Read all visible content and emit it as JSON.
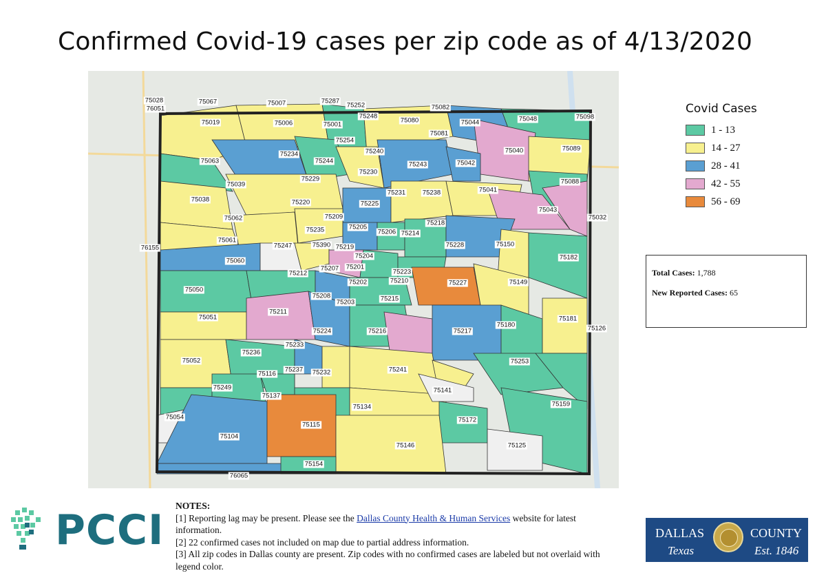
{
  "title": "Confirmed Covid-19 cases per zip code as of 4/13/2020",
  "legend": {
    "title": "Covid Cases",
    "items": [
      {
        "label": "1 - 13",
        "color": "#5cc9a3"
      },
      {
        "label": "14 - 27",
        "color": "#f7f08f"
      },
      {
        "label": "28 - 41",
        "color": "#5a9fd2"
      },
      {
        "label": "42 - 55",
        "color": "#e3a9cf"
      },
      {
        "label": "56 - 69",
        "color": "#e88a3c"
      }
    ]
  },
  "totals": {
    "total_label": "Total Cases:",
    "total_value": "1,788",
    "new_label": "New Reported Cases:",
    "new_value": "65"
  },
  "notes": {
    "heading": "NOTES:",
    "n1_pre": "[1] Reporting lag may be present. Please see the ",
    "n1_link": "Dallas County Health & Human Services",
    "n1_post": " website for latest information.",
    "n2": "[2] 22 confirmed cases not included on map due to partial address information.",
    "n3": "[3] All zip codes in Dallas county are present. Zip codes with no confirmed cases are labeled but not overlaid with legend color."
  },
  "logos": {
    "pcci": "PCCI",
    "dallas": "DALLAS",
    "county": "COUNTY",
    "texas": "Texas",
    "est": "Est. 1846"
  },
  "zips": [
    "75028",
    "76051",
    "75067",
    "75007",
    "75287",
    "75252",
    "75082",
    "75019",
    "75006",
    "75001",
    "75248",
    "75080",
    "75044",
    "75048",
    "75098",
    "75081",
    "75254",
    "75240",
    "75243",
    "75040",
    "75089",
    "75063",
    "75234",
    "75244",
    "75230",
    "75042",
    "75039",
    "75229",
    "75088",
    "75041",
    "75038",
    "75220",
    "75225",
    "75231",
    "75238",
    "75043",
    "75032",
    "75062",
    "75209",
    "75235",
    "75205",
    "75206",
    "75214",
    "75218",
    "75061",
    "75247",
    "75390",
    "75219",
    "75228",
    "75150",
    "76155",
    "75204",
    "75201",
    "75182",
    "75060",
    "75212",
    "75207",
    "75223",
    "75227",
    "75149",
    "75050",
    "75202",
    "75210",
    "75208",
    "75203",
    "75215",
    "75211",
    "75180",
    "75181",
    "75126",
    "75051",
    "75224",
    "75216",
    "75217",
    "75233",
    "75052",
    "75236",
    "75253",
    "75237",
    "75232",
    "75241",
    "75116",
    "75249",
    "75141",
    "75137",
    "75134",
    "75159",
    "75054",
    "75115",
    "75172",
    "75104",
    "75146",
    "75125",
    "75154",
    "76065"
  ]
}
